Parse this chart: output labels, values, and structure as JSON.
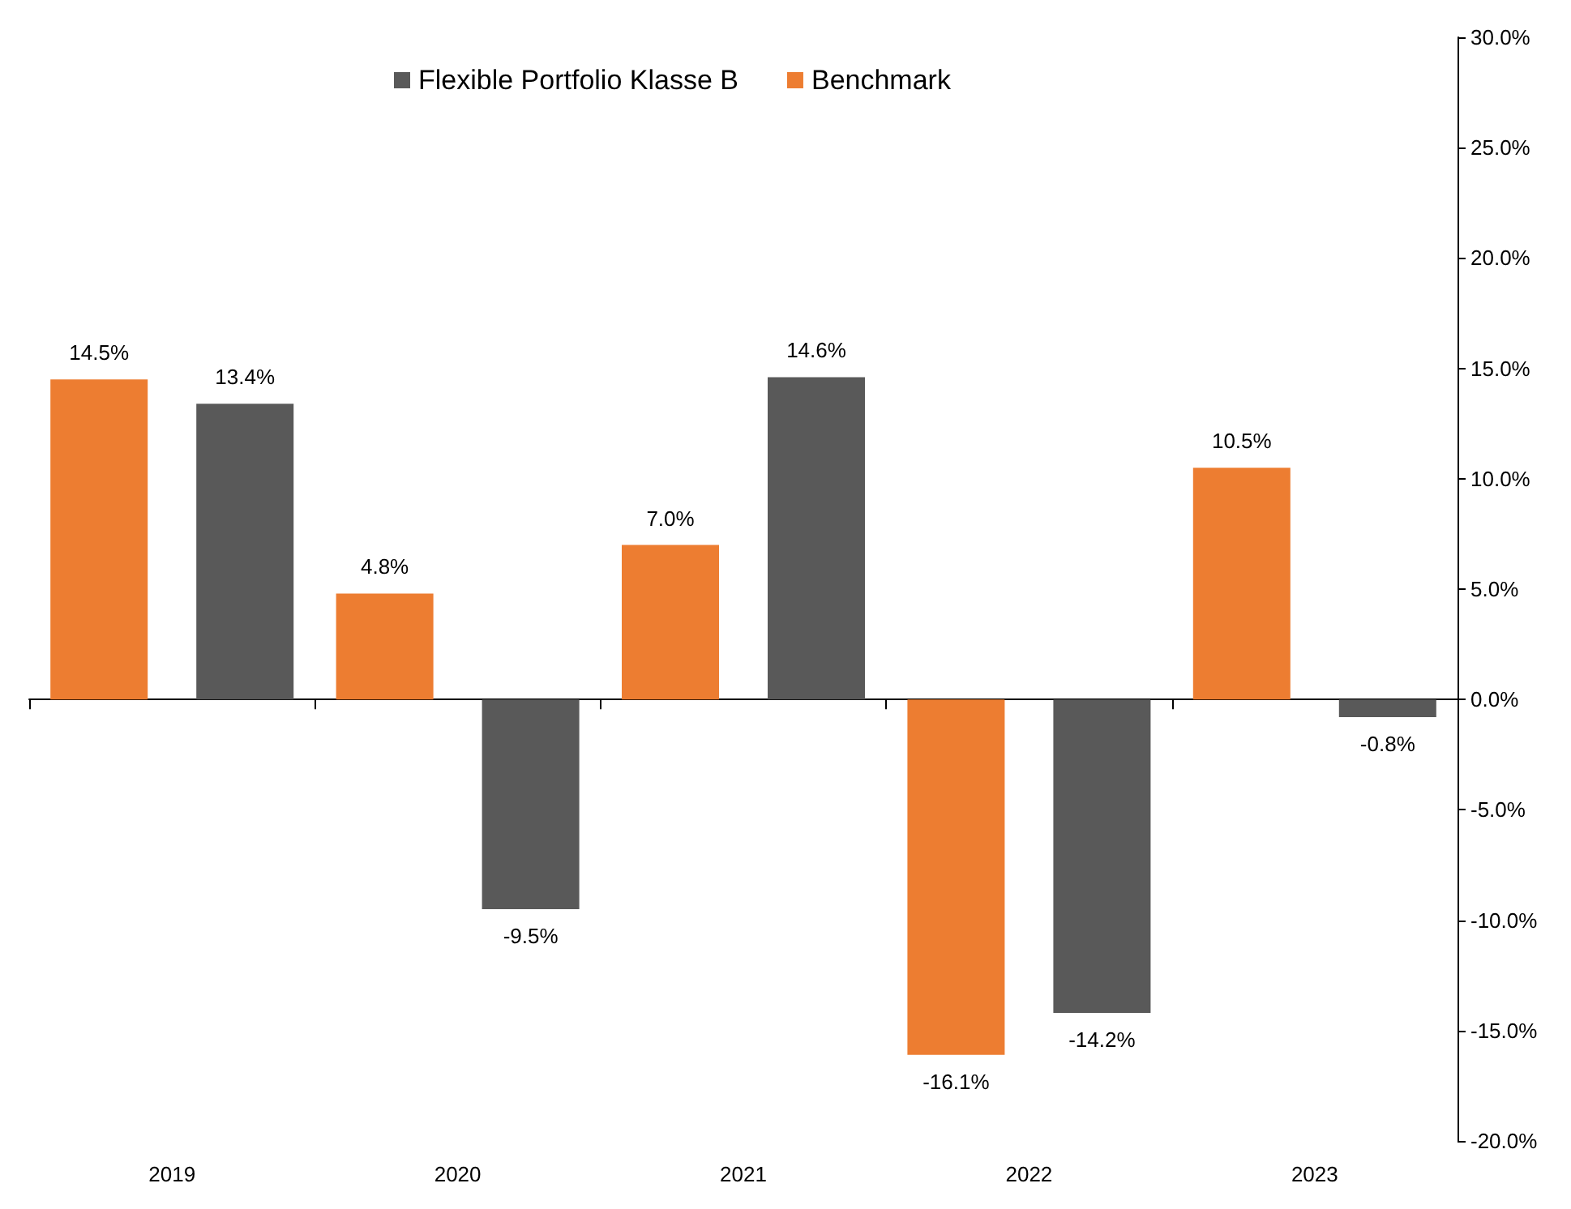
{
  "chart_data": {
    "type": "bar",
    "categories": [
      "2019",
      "2020",
      "2021",
      "2022",
      "2023"
    ],
    "series": [
      {
        "name": "Benchmark",
        "color": "#ed7d31",
        "values": [
          14.5,
          4.8,
          7.0,
          -16.1,
          10.5
        ],
        "value_labels": [
          "14.5%",
          "4.8%",
          "7.0%",
          "-16.1%",
          "10.5%"
        ]
      },
      {
        "name": "Flexible Portfolio Klasse B",
        "color": "#595959",
        "values": [
          13.4,
          -9.5,
          14.6,
          -14.2,
          -0.8
        ],
        "value_labels": [
          "13.4%",
          "-9.5%",
          "14.6%",
          "-14.2%",
          "-0.8%"
        ]
      }
    ],
    "ylim": [
      -20,
      30
    ],
    "yticks": [
      {
        "value": -20,
        "label": "-20.0%"
      },
      {
        "value": -15,
        "label": "-15.0%"
      },
      {
        "value": -10,
        "label": "-10.0%"
      },
      {
        "value": -5,
        "label": "-5.0%"
      },
      {
        "value": 0,
        "label": "0.0%"
      },
      {
        "value": 5,
        "label": "5.0%"
      },
      {
        "value": 10,
        "label": "10.0%"
      },
      {
        "value": 15,
        "label": "15.0%"
      },
      {
        "value": 20,
        "label": "20.0%"
      },
      {
        "value": 25,
        "label": "25.0%"
      },
      {
        "value": 30,
        "label": "30.0%"
      }
    ],
    "legend": "top"
  }
}
